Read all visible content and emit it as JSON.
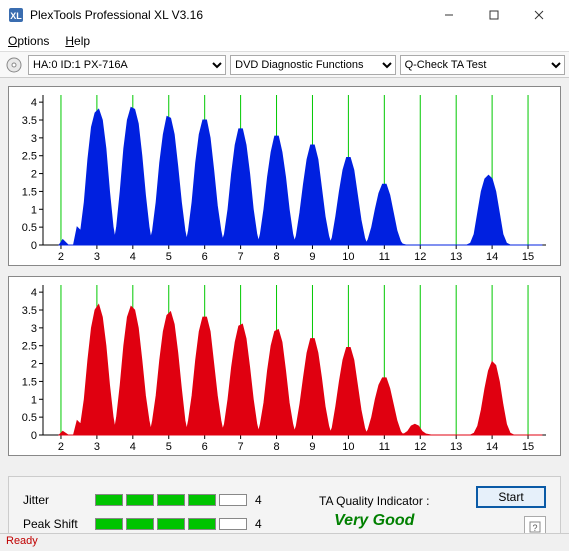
{
  "window": {
    "title": "PlexTools Professional XL V3.16"
  },
  "menu": {
    "options": "Options",
    "help": "Help"
  },
  "toolbar": {
    "drive": "HA:0 ID:1   PX-716A",
    "mode": "DVD Diagnostic Functions",
    "test": "Q-Check TA Test"
  },
  "chart": {
    "top_color": "#0020e0",
    "bottom_color": "#e00010",
    "grid_color": "#00c800",
    "axis_color": "#000000",
    "bg": "#ffffff",
    "y_ticks": [
      0,
      0.5,
      1,
      1.5,
      2,
      2.5,
      3,
      3.5,
      4
    ],
    "x_ticks": [
      2,
      3,
      4,
      5,
      6,
      7,
      8,
      9,
      10,
      11,
      12,
      13,
      14,
      15
    ],
    "y_max": 4.2,
    "x_min": 1.5,
    "x_max": 15.5,
    "top_points": [
      [
        1.95,
        0
      ],
      [
        2.05,
        0.15
      ],
      [
        2.2,
        0
      ],
      [
        2.35,
        0
      ],
      [
        2.45,
        0.5
      ],
      [
        2.55,
        0.4
      ],
      [
        2.65,
        1.2
      ],
      [
        2.75,
        2.4
      ],
      [
        2.85,
        3.3
      ],
      [
        2.95,
        3.7
      ],
      [
        3.05,
        3.8
      ],
      [
        3.15,
        3.5
      ],
      [
        3.25,
        2.7
      ],
      [
        3.35,
        1.5
      ],
      [
        3.45,
        0.5
      ],
      [
        3.5,
        0.2
      ],
      [
        3.55,
        0.5
      ],
      [
        3.65,
        1.5
      ],
      [
        3.75,
        2.7
      ],
      [
        3.85,
        3.5
      ],
      [
        3.95,
        3.85
      ],
      [
        4.05,
        3.8
      ],
      [
        4.15,
        3.4
      ],
      [
        4.25,
        2.5
      ],
      [
        4.35,
        1.4
      ],
      [
        4.45,
        0.5
      ],
      [
        4.5,
        0.2
      ],
      [
        4.55,
        0.4
      ],
      [
        4.65,
        1.2
      ],
      [
        4.75,
        2.3
      ],
      [
        4.85,
        3.1
      ],
      [
        4.95,
        3.6
      ],
      [
        5.05,
        3.55
      ],
      [
        5.15,
        3.1
      ],
      [
        5.25,
        2.2
      ],
      [
        5.35,
        1.2
      ],
      [
        5.45,
        0.4
      ],
      [
        5.5,
        0.15
      ],
      [
        5.55,
        0.4
      ],
      [
        5.65,
        1.2
      ],
      [
        5.75,
        2.3
      ],
      [
        5.85,
        3.1
      ],
      [
        5.95,
        3.5
      ],
      [
        6.05,
        3.5
      ],
      [
        6.15,
        3.0
      ],
      [
        6.25,
        2.1
      ],
      [
        6.35,
        1.1
      ],
      [
        6.45,
        0.4
      ],
      [
        6.5,
        0.15
      ],
      [
        6.55,
        0.3
      ],
      [
        6.65,
        1.0
      ],
      [
        6.75,
        2.0
      ],
      [
        6.85,
        2.8
      ],
      [
        6.95,
        3.25
      ],
      [
        7.05,
        3.25
      ],
      [
        7.15,
        2.8
      ],
      [
        7.25,
        2.0
      ],
      [
        7.35,
        1.0
      ],
      [
        7.45,
        0.3
      ],
      [
        7.5,
        0.1
      ],
      [
        7.55,
        0.3
      ],
      [
        7.65,
        1.0
      ],
      [
        7.75,
        1.9
      ],
      [
        7.85,
        2.6
      ],
      [
        7.95,
        3.05
      ],
      [
        8.05,
        3.05
      ],
      [
        8.15,
        2.6
      ],
      [
        8.25,
        1.9
      ],
      [
        8.35,
        1.0
      ],
      [
        8.45,
        0.3
      ],
      [
        8.5,
        0.1
      ],
      [
        8.55,
        0.25
      ],
      [
        8.65,
        0.9
      ],
      [
        8.75,
        1.7
      ],
      [
        8.85,
        2.4
      ],
      [
        8.95,
        2.8
      ],
      [
        9.05,
        2.8
      ],
      [
        9.15,
        2.4
      ],
      [
        9.25,
        1.6
      ],
      [
        9.35,
        0.8
      ],
      [
        9.45,
        0.25
      ],
      [
        9.5,
        0.08
      ],
      [
        9.55,
        0.2
      ],
      [
        9.65,
        0.8
      ],
      [
        9.75,
        1.5
      ],
      [
        9.85,
        2.1
      ],
      [
        9.95,
        2.45
      ],
      [
        10.05,
        2.45
      ],
      [
        10.15,
        2.1
      ],
      [
        10.25,
        1.4
      ],
      [
        10.35,
        0.7
      ],
      [
        10.45,
        0.2
      ],
      [
        10.5,
        0.06
      ],
      [
        10.55,
        0.15
      ],
      [
        10.65,
        0.5
      ],
      [
        10.75,
        1.0
      ],
      [
        10.85,
        1.45
      ],
      [
        10.95,
        1.7
      ],
      [
        11.05,
        1.7
      ],
      [
        11.15,
        1.4
      ],
      [
        11.25,
        0.9
      ],
      [
        11.35,
        0.4
      ],
      [
        11.45,
        0.1
      ],
      [
        11.5,
        0.03
      ],
      [
        11.6,
        0
      ],
      [
        12.0,
        0
      ],
      [
        12.5,
        0
      ],
      [
        13.0,
        0
      ],
      [
        13.3,
        0
      ],
      [
        13.4,
        0.05
      ],
      [
        13.5,
        0.3
      ],
      [
        13.6,
        0.9
      ],
      [
        13.7,
        1.5
      ],
      [
        13.8,
        1.85
      ],
      [
        13.9,
        1.95
      ],
      [
        14.0,
        1.85
      ],
      [
        14.1,
        1.5
      ],
      [
        14.2,
        0.9
      ],
      [
        14.3,
        0.3
      ],
      [
        14.4,
        0.05
      ],
      [
        14.5,
        0
      ],
      [
        15.0,
        0
      ],
      [
        15.4,
        0
      ]
    ],
    "bottom_points": [
      [
        1.95,
        0
      ],
      [
        2.05,
        0.1
      ],
      [
        2.2,
        0
      ],
      [
        2.35,
        0
      ],
      [
        2.45,
        0.4
      ],
      [
        2.55,
        0.3
      ],
      [
        2.65,
        1.0
      ],
      [
        2.75,
        2.1
      ],
      [
        2.85,
        3.0
      ],
      [
        2.95,
        3.5
      ],
      [
        3.05,
        3.65
      ],
      [
        3.15,
        3.3
      ],
      [
        3.25,
        2.5
      ],
      [
        3.35,
        1.4
      ],
      [
        3.45,
        0.5
      ],
      [
        3.5,
        0.2
      ],
      [
        3.55,
        0.5
      ],
      [
        3.65,
        1.4
      ],
      [
        3.75,
        2.5
      ],
      [
        3.85,
        3.3
      ],
      [
        3.95,
        3.6
      ],
      [
        4.05,
        3.5
      ],
      [
        4.15,
        3.0
      ],
      [
        4.25,
        2.1
      ],
      [
        4.35,
        1.1
      ],
      [
        4.45,
        0.4
      ],
      [
        4.5,
        0.15
      ],
      [
        4.55,
        0.4
      ],
      [
        4.65,
        1.1
      ],
      [
        4.75,
        2.1
      ],
      [
        4.85,
        2.9
      ],
      [
        4.95,
        3.35
      ],
      [
        5.05,
        3.45
      ],
      [
        5.15,
        3.1
      ],
      [
        5.25,
        2.3
      ],
      [
        5.35,
        1.3
      ],
      [
        5.45,
        0.4
      ],
      [
        5.5,
        0.15
      ],
      [
        5.55,
        0.4
      ],
      [
        5.65,
        1.1
      ],
      [
        5.75,
        2.1
      ],
      [
        5.85,
        2.9
      ],
      [
        5.95,
        3.3
      ],
      [
        6.05,
        3.3
      ],
      [
        6.15,
        2.9
      ],
      [
        6.25,
        2.0
      ],
      [
        6.35,
        1.1
      ],
      [
        6.45,
        0.4
      ],
      [
        6.5,
        0.15
      ],
      [
        6.55,
        0.3
      ],
      [
        6.65,
        1.0
      ],
      [
        6.75,
        1.9
      ],
      [
        6.85,
        2.6
      ],
      [
        6.95,
        3.05
      ],
      [
        7.05,
        3.1
      ],
      [
        7.15,
        2.7
      ],
      [
        7.25,
        1.9
      ],
      [
        7.35,
        1.0
      ],
      [
        7.45,
        0.3
      ],
      [
        7.5,
        0.1
      ],
      [
        7.55,
        0.3
      ],
      [
        7.65,
        0.9
      ],
      [
        7.75,
        1.8
      ],
      [
        7.85,
        2.5
      ],
      [
        7.95,
        2.9
      ],
      [
        8.05,
        2.95
      ],
      [
        8.15,
        2.6
      ],
      [
        8.25,
        1.8
      ],
      [
        8.35,
        0.9
      ],
      [
        8.45,
        0.3
      ],
      [
        8.5,
        0.1
      ],
      [
        8.55,
        0.25
      ],
      [
        8.65,
        0.85
      ],
      [
        8.75,
        1.6
      ],
      [
        8.85,
        2.3
      ],
      [
        8.95,
        2.7
      ],
      [
        9.05,
        2.7
      ],
      [
        9.15,
        2.3
      ],
      [
        9.25,
        1.6
      ],
      [
        9.35,
        0.8
      ],
      [
        9.45,
        0.25
      ],
      [
        9.5,
        0.08
      ],
      [
        9.55,
        0.2
      ],
      [
        9.65,
        0.8
      ],
      [
        9.75,
        1.5
      ],
      [
        9.85,
        2.1
      ],
      [
        9.95,
        2.45
      ],
      [
        10.05,
        2.45
      ],
      [
        10.15,
        2.1
      ],
      [
        10.25,
        1.4
      ],
      [
        10.35,
        0.7
      ],
      [
        10.45,
        0.2
      ],
      [
        10.5,
        0.06
      ],
      [
        10.55,
        0.15
      ],
      [
        10.65,
        0.5
      ],
      [
        10.75,
        1.0
      ],
      [
        10.85,
        1.4
      ],
      [
        10.95,
        1.6
      ],
      [
        11.05,
        1.6
      ],
      [
        11.15,
        1.3
      ],
      [
        11.25,
        0.85
      ],
      [
        11.35,
        0.4
      ],
      [
        11.45,
        0.1
      ],
      [
        11.5,
        0.03
      ],
      [
        11.55,
        0.03
      ],
      [
        11.65,
        0.1
      ],
      [
        11.75,
        0.25
      ],
      [
        11.85,
        0.3
      ],
      [
        11.95,
        0.25
      ],
      [
        12.05,
        0.1
      ],
      [
        12.15,
        0.03
      ],
      [
        12.3,
        0
      ],
      [
        12.7,
        0
      ],
      [
        13.0,
        0
      ],
      [
        13.3,
        0
      ],
      [
        13.4,
        0
      ],
      [
        13.5,
        0.05
      ],
      [
        13.6,
        0.25
      ],
      [
        13.7,
        0.7
      ],
      [
        13.8,
        1.3
      ],
      [
        13.9,
        1.8
      ],
      [
        14.0,
        2.05
      ],
      [
        14.1,
        1.95
      ],
      [
        14.2,
        1.5
      ],
      [
        14.3,
        0.85
      ],
      [
        14.4,
        0.3
      ],
      [
        14.5,
        0.05
      ],
      [
        14.6,
        0
      ],
      [
        15.0,
        0
      ],
      [
        15.4,
        0
      ]
    ]
  },
  "meters": {
    "jitter": {
      "label": "Jitter",
      "filled": 4,
      "total": 5,
      "value": "4"
    },
    "peakshift": {
      "label": "Peak Shift",
      "filled": 4,
      "total": 5,
      "value": "4"
    }
  },
  "ta": {
    "label": "TA Quality Indicator :",
    "value": "Very Good"
  },
  "buttons": {
    "start": "Start"
  },
  "status": "Ready"
}
